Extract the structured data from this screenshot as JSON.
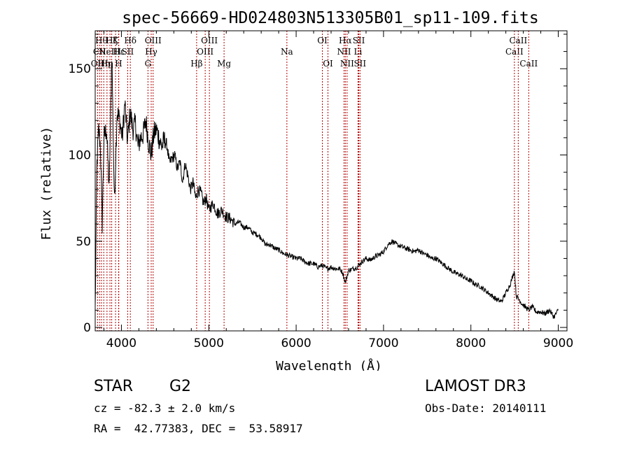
{
  "chart_data": {
    "type": "line",
    "title": "spec-56669-HD024803N513305B01_sp11-109.fits",
    "xlabel": "Wavelength (Å)",
    "ylabel": "Flux (relative)",
    "xlim": [
      3700,
      9100
    ],
    "ylim": [
      -2,
      172
    ],
    "xticks": [
      {
        "value": 4000,
        "label": "4000"
      },
      {
        "value": 5000,
        "label": "5000"
      },
      {
        "value": 6000,
        "label": "6000"
      },
      {
        "value": 7000,
        "label": "7000"
      },
      {
        "value": 8000,
        "label": "8000"
      },
      {
        "value": 9000,
        "label": "9000"
      }
    ],
    "yticks": [
      {
        "value": 0,
        "label": "0"
      },
      {
        "value": 50,
        "label": "50"
      },
      {
        "value": 100,
        "label": "100"
      },
      {
        "value": 150,
        "label": "150"
      }
    ],
    "series": [
      {
        "name": "flux",
        "x": [
          3700,
          3720,
          3740,
          3760,
          3780,
          3800,
          3830,
          3860,
          3890,
          3920,
          3950,
          3980,
          4010,
          4040,
          4070,
          4100,
          4130,
          4160,
          4190,
          4220,
          4250,
          4280,
          4310,
          4340,
          4370,
          4400,
          4430,
          4460,
          4490,
          4520,
          4550,
          4580,
          4610,
          4640,
          4670,
          4700,
          4730,
          4760,
          4790,
          4820,
          4850,
          4880,
          4910,
          4940,
          4970,
          5000,
          5050,
          5100,
          5150,
          5200,
          5250,
          5300,
          5350,
          5400,
          5450,
          5500,
          5550,
          5600,
          5650,
          5700,
          5750,
          5800,
          5850,
          5900,
          5950,
          6000,
          6050,
          6100,
          6150,
          6200,
          6250,
          6300,
          6350,
          6400,
          6450,
          6500,
          6530,
          6563,
          6600,
          6650,
          6700,
          6750,
          6800,
          6850,
          6900,
          6950,
          7000,
          7050,
          7100,
          7150,
          7200,
          7250,
          7300,
          7350,
          7400,
          7450,
          7500,
          7550,
          7600,
          7650,
          7700,
          7750,
          7800,
          7850,
          7900,
          7950,
          8000,
          8050,
          8100,
          8150,
          8200,
          8250,
          8300,
          8350,
          8400,
          8450,
          8498,
          8520,
          8542,
          8580,
          8620,
          8662,
          8700,
          8750,
          8800,
          8850,
          8900,
          8950,
          9000
        ],
        "y": [
          10,
          95,
          115,
          105,
          60,
          110,
          115,
          80,
          160,
          72,
          125,
          120,
          110,
          130,
          108,
          125,
          115,
          118,
          105,
          110,
          112,
          120,
          108,
          100,
          112,
          115,
          110,
          105,
          108,
          106,
          95,
          98,
          100,
          92,
          96,
          85,
          95,
          88,
          80,
          84,
          75,
          80,
          78,
          72,
          75,
          68,
          72,
          66,
          68,
          64,
          63,
          60,
          61,
          58,
          58,
          55,
          54,
          52,
          48,
          48,
          46,
          45,
          43,
          42,
          41,
          40,
          40,
          38,
          37,
          37,
          35,
          36,
          34,
          35,
          34,
          34,
          32,
          26,
          33,
          34,
          35,
          38,
          40,
          39,
          41,
          42,
          44,
          48,
          50,
          48,
          47,
          46,
          45,
          44,
          45,
          43,
          42,
          40,
          40,
          38,
          36,
          34,
          32,
          31,
          30,
          28,
          27,
          25,
          24,
          22,
          20,
          18,
          16,
          15,
          20,
          25,
          33,
          18,
          17,
          14,
          12,
          10,
          12,
          9,
          9,
          8,
          10,
          6,
          10
        ]
      }
    ],
    "line_markers": [
      {
        "wave": 3727,
        "label": "OII",
        "row": 3
      },
      {
        "wave": 3750,
        "label": "CII",
        "row": 2
      },
      {
        "wave": 3771,
        "label": "Hθ",
        "row": 1
      },
      {
        "wave": 3798,
        "label": "Hη",
        "row": 3
      },
      {
        "wave": 3835,
        "label": "Hη",
        "row": 3
      },
      {
        "wave": 3869,
        "label": "NeIII",
        "row": 2
      },
      {
        "wave": 3889,
        "label": "Hζ",
        "row": 1
      },
      {
        "wave": 3933,
        "label": "K",
        "row": 1
      },
      {
        "wave": 3968,
        "label": "H",
        "row": 3
      },
      {
        "wave": 3970,
        "label": "Hε",
        "row": 2
      },
      {
        "wave": 4072,
        "label": "SII",
        "row": 2
      },
      {
        "wave": 4102,
        "label": "Hδ",
        "row": 1
      },
      {
        "wave": 4304,
        "label": "G",
        "row": 3
      },
      {
        "wave": 4341,
        "label": "Hγ",
        "row": 2
      },
      {
        "wave": 4363,
        "label": "OIII",
        "row": 1
      },
      {
        "wave": 4861,
        "label": "Hβ",
        "row": 3
      },
      {
        "wave": 4959,
        "label": "OIII",
        "row": 2
      },
      {
        "wave": 5007,
        "label": "OIII",
        "row": 1
      },
      {
        "wave": 5175,
        "label": "Mg",
        "row": 3
      },
      {
        "wave": 5894,
        "label": "Na",
        "row": 2
      },
      {
        "wave": 6300,
        "label": "OI",
        "row": 1
      },
      {
        "wave": 6364,
        "label": "OI",
        "row": 3
      },
      {
        "wave": 6548,
        "label": "NII",
        "row": 2
      },
      {
        "wave": 6563,
        "label": "Hα",
        "row": 1
      },
      {
        "wave": 6583,
        "label": "NII",
        "row": 3
      },
      {
        "wave": 6708,
        "label": "Li",
        "row": 2
      },
      {
        "wave": 6717,
        "label": "SII",
        "row": 1
      },
      {
        "wave": 6731,
        "label": "SII",
        "row": 3
      },
      {
        "wave": 8498,
        "label": "CaII",
        "row": 2
      },
      {
        "wave": 8542,
        "label": "CaII",
        "row": 1
      },
      {
        "wave": 8662,
        "label": "CaII",
        "row": 3
      }
    ],
    "marker_color": "#b00000"
  },
  "info": {
    "object_class": "STAR",
    "subclass": "G2",
    "redshift": "cz = -82.3 ± 2.0 km/s",
    "coords": "RA =  42.77383, DEC =  53.58917",
    "survey": "LAMOST DR3",
    "obs_date": "Obs-Date: 20140111"
  }
}
